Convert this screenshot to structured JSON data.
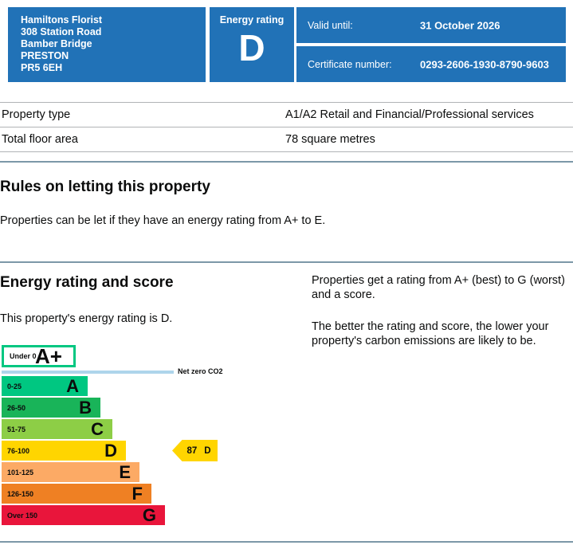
{
  "header": {
    "address_lines": [
      "Hamiltons Florist",
      "308 Station Road",
      "Bamber Bridge",
      "PRESTON",
      "PR5 6EH"
    ],
    "energy_rating_label": "Energy rating",
    "energy_rating_value": "D",
    "valid_until_label": "Valid until:",
    "valid_until_value": "31 October 2026",
    "certificate_label": "Certificate number:",
    "certificate_value": "0293-2606-1930-8790-9603"
  },
  "summary_table": {
    "rows": [
      {
        "label": "Property type",
        "value": "A1/A2 Retail and Financial/Professional services"
      },
      {
        "label": "Total floor area",
        "value": "78 square metres"
      }
    ]
  },
  "rules_section": {
    "heading": "Rules on letting this property",
    "body": "Properties can be let if they have an energy rating from A+ to E."
  },
  "rating_section": {
    "heading": "Energy rating and score",
    "property_rating_text": "This property's energy rating is D.",
    "info_paragraph_1": "Properties get a rating from A+ (best) to G (worst) and a score.",
    "info_paragraph_2": "The better the rating and score, the lower your property's carbon emissions are likely to be."
  },
  "chart_data": {
    "type": "bar",
    "title": "Energy rating and score",
    "bands": [
      {
        "range": "Under 0",
        "letter": "A+",
        "color": "#00c781",
        "outline": true
      },
      {
        "range": "0-25",
        "letter": "A",
        "color": "#00c781"
      },
      {
        "range": "26-50",
        "letter": "B",
        "color": "#19b459"
      },
      {
        "range": "51-75",
        "letter": "C",
        "color": "#8dce46"
      },
      {
        "range": "76-100",
        "letter": "D",
        "color": "#ffd500"
      },
      {
        "range": "101-125",
        "letter": "E",
        "color": "#fcaa65"
      },
      {
        "range": "126-150",
        "letter": "F",
        "color": "#ef8023"
      },
      {
        "range": "Over 150",
        "letter": "G",
        "color": "#e9153b"
      }
    ],
    "net_zero_label": "Net zero CO2",
    "current_score": "87",
    "current_letter": "D",
    "arrow_color": "#ffd500"
  },
  "colors": {
    "header_blue": "#2172b7",
    "divider": "#7c98a8",
    "table_line": "#b1b4b6",
    "net_zero_line": "#aed5eb"
  }
}
